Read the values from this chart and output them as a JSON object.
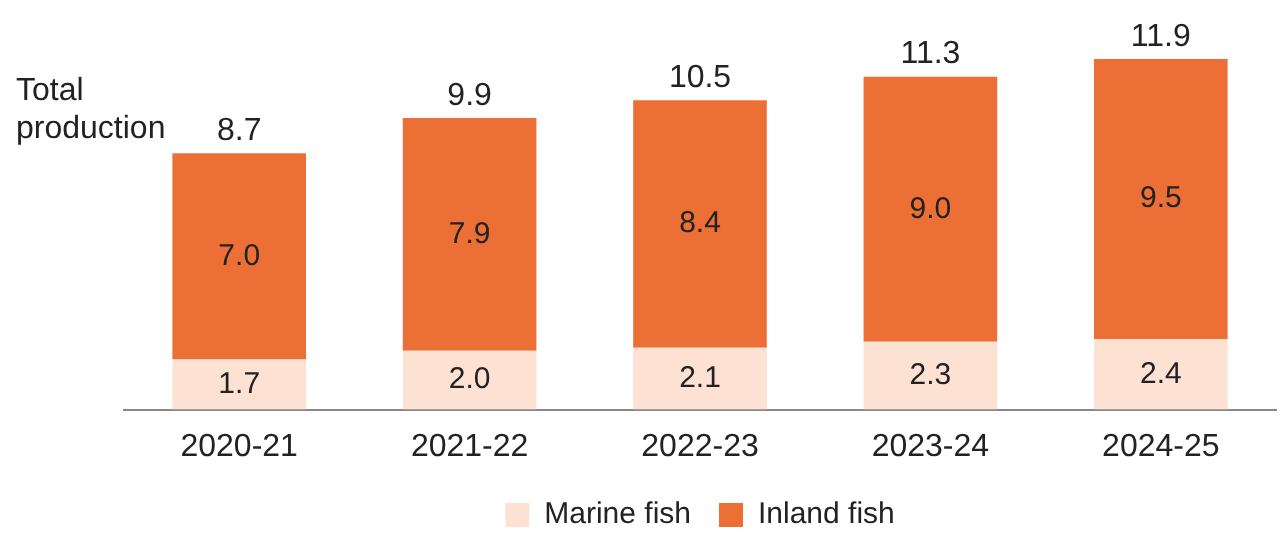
{
  "chart_data": {
    "type": "bar",
    "stacked": true,
    "categories": [
      "2020-21",
      "2021-22",
      "2022-23",
      "2023-24",
      "2024-25"
    ],
    "series": [
      {
        "name": "Marine fish",
        "color": "#fde1d3",
        "values": [
          1.7,
          2.0,
          2.1,
          2.3,
          2.4
        ],
        "value_labels": [
          "1.7",
          "2.0",
          "2.1",
          "2.3",
          "2.4"
        ]
      },
      {
        "name": "Inland fish",
        "color": "#ec6f35",
        "values": [
          7.0,
          7.9,
          8.4,
          9.0,
          9.5
        ],
        "value_labels": [
          "7.0",
          "7.9",
          "8.4",
          "9.0",
          "9.5"
        ]
      }
    ],
    "totals": [
      "8.7",
      "9.9",
      "10.5",
      "11.3",
      "11.9"
    ],
    "annotations": [
      "Total production"
    ],
    "legend": "bottom",
    "grid": false
  }
}
